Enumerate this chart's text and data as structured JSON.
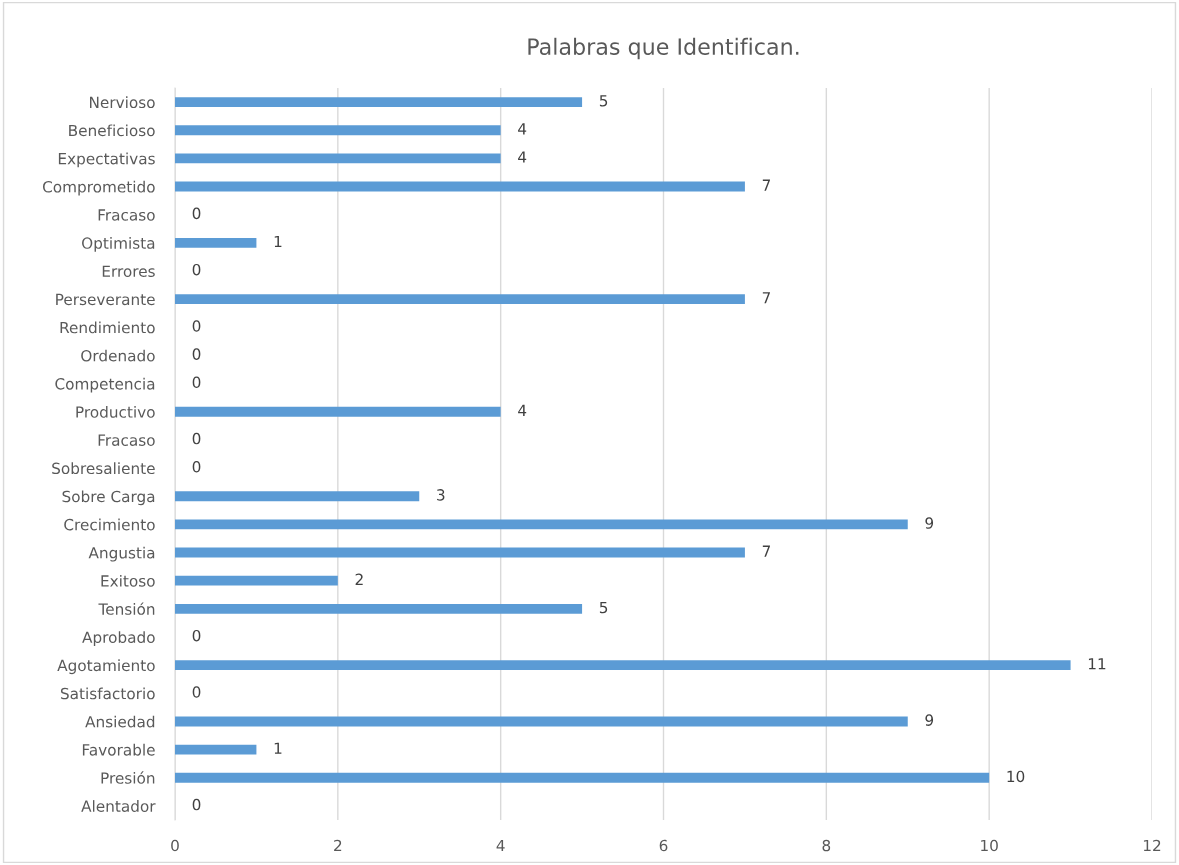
{
  "chart_data": {
    "type": "bar",
    "orientation": "horizontal",
    "title": "Palabras que Identifican.",
    "categories": [
      "Nervioso",
      "Beneficioso",
      "Expectativas",
      "Comprometido",
      "Fracaso",
      "Optimista",
      "Errores",
      "Perseverante",
      "Rendimiento",
      "Ordenado",
      "Competencia",
      "Productivo",
      "Fracaso",
      "Sobresaliente",
      "Sobre Carga",
      "Crecimiento",
      "Angustia",
      "Exitoso",
      "Tensión",
      "Aprobado",
      "Agotamiento",
      "Satisfactorio",
      "Ansiedad",
      "Favorable",
      "Presión",
      "Alentador"
    ],
    "values": [
      5,
      4,
      4,
      7,
      0,
      1,
      0,
      7,
      0,
      0,
      0,
      4,
      0,
      0,
      3,
      9,
      7,
      2,
      5,
      0,
      11,
      0,
      9,
      1,
      10,
      0
    ],
    "color": "#5b9bd5",
    "xlim": [
      0,
      12
    ],
    "xticks": [
      0,
      2,
      4,
      6,
      8,
      10,
      12
    ],
    "grid": "x",
    "data_labels": true
  }
}
